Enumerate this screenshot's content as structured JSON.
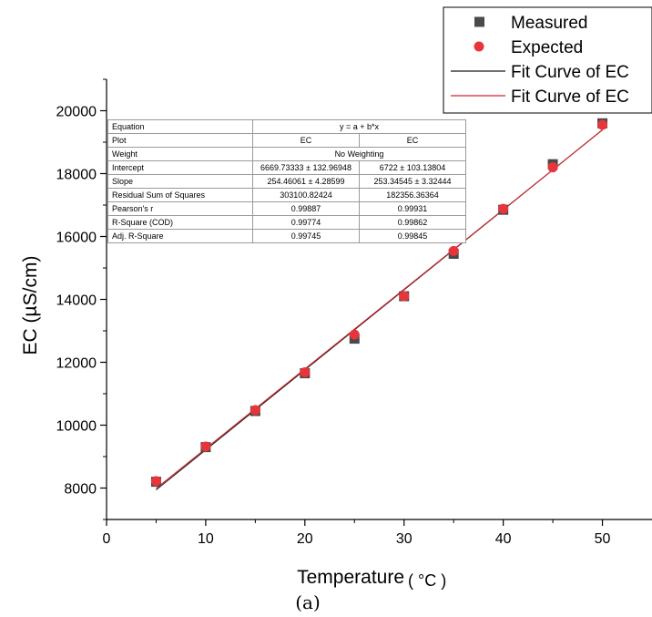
{
  "chart_data": {
    "type": "scatter",
    "xlabel": "Temperature",
    "xlabel_unit": "( °C )",
    "ylabel": "EC (µS/cm)",
    "caption": "(a)",
    "xlim": [
      0,
      55
    ],
    "ylim": [
      7000,
      21000
    ],
    "x_ticks": [
      0,
      10,
      20,
      30,
      40,
      50
    ],
    "y_ticks": [
      8000,
      10000,
      12000,
      14000,
      16000,
      18000,
      20000
    ],
    "grid": false,
    "legend_position": "top-right",
    "series": [
      {
        "name": "Measured",
        "marker": "square",
        "color": "#4a4a4a",
        "x": [
          5,
          10,
          15,
          20,
          25,
          30,
          35,
          40,
          45,
          50
        ],
        "y": [
          8200,
          9300,
          10450,
          11650,
          12750,
          14100,
          15450,
          16850,
          18300,
          19600
        ]
      },
      {
        "name": "Expected",
        "marker": "circle",
        "color": "#e8353b",
        "x": [
          5,
          10,
          15,
          20,
          25,
          30,
          35,
          40,
          45,
          50
        ],
        "y": [
          8220,
          9320,
          10480,
          11680,
          12880,
          14100,
          15540,
          16880,
          18200,
          19550
        ]
      }
    ],
    "fit_lines": [
      {
        "name": "Fit Curve of EC",
        "color": "#1a1a1a",
        "intercept": 6669.73333,
        "slope": 254.46061,
        "x_range": [
          5,
          50
        ]
      },
      {
        "name": "Fit Curve of EC",
        "color": "#d4262c",
        "intercept": 6722,
        "slope": 253.34545,
        "x_range": [
          5,
          50
        ]
      }
    ],
    "stats_table": {
      "rows": [
        {
          "label": "Equation",
          "span": "y = a + b*x"
        },
        {
          "label": "Plot",
          "values": [
            "EC",
            "EC"
          ]
        },
        {
          "label": "Weight",
          "span": "No Weighting"
        },
        {
          "label": "Intercept",
          "values": [
            "6669.73333 ± 132.96948",
            "6722 ± 103.13804"
          ]
        },
        {
          "label": "Slope",
          "values": [
            "254.46061 ± 4.28599",
            "253.34545 ± 3.32444"
          ]
        },
        {
          "label": "Residual Sum of Squares",
          "values": [
            "303100.82424",
            "182356.36364"
          ]
        },
        {
          "label": "Pearson's r",
          "values": [
            "0.99887",
            "0.99931"
          ]
        },
        {
          "label": "R-Square (COD)",
          "values": [
            "0.99774",
            "0.99862"
          ]
        },
        {
          "label": "Adj. R-Square",
          "values": [
            "0.99745",
            "0.99845"
          ]
        }
      ]
    }
  }
}
